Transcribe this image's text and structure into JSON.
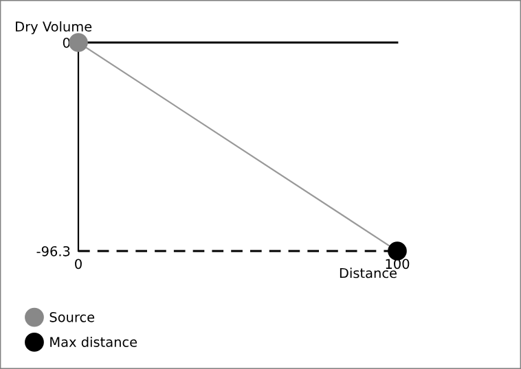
{
  "chart_data": {
    "type": "scatter",
    "xlabel": "Distance",
    "ylabel": "Dry Volume",
    "xlim": [
      0,
      100
    ],
    "ylim": [
      -96.3,
      0
    ],
    "xticks": [
      0,
      100
    ],
    "yticks": [
      -96.3,
      0
    ],
    "legend": "bottom left",
    "grid": false,
    "x": [
      0,
      100
    ],
    "ref_lines": [
      {
        "axis": "y",
        "value": 0,
        "color": "#000000",
        "line_style": "solid"
      },
      {
        "axis": "y",
        "value": -96.3,
        "color": "#000000",
        "line_style": "dashed"
      }
    ],
    "series": [
      {
        "type": "line",
        "color": "#999999",
        "values": [
          0,
          -96.3
        ]
      },
      {
        "marker": "circle",
        "name": "Source",
        "color": "#888888",
        "values": [
          0,
          null
        ]
      },
      {
        "marker": "circle",
        "name": "Max distance",
        "color": "#000000",
        "values": [
          null,
          -96.3
        ]
      }
    ]
  }
}
